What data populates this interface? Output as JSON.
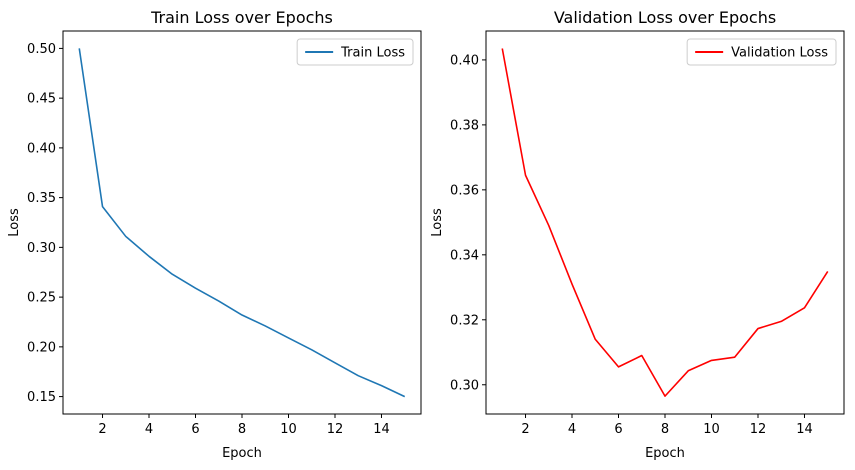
{
  "chart_data": [
    {
      "type": "line",
      "title": "Train Loss over Epochs",
      "xlabel": "Epoch",
      "ylabel": "Loss",
      "xlim": [
        0.3,
        15.7
      ],
      "ylim": [
        0.1325,
        0.5175
      ],
      "xticks": [
        2,
        4,
        6,
        8,
        10,
        12,
        14
      ],
      "yticks": [
        0.15,
        0.2,
        0.25,
        0.3,
        0.35,
        0.4,
        0.45,
        0.5
      ],
      "ytick_labels": [
        "0.15",
        "0.20",
        "0.25",
        "0.30",
        "0.35",
        "0.40",
        "0.45",
        "0.50"
      ],
      "legend_position": "top-right",
      "series": [
        {
          "name": "Train Loss",
          "color": "#1f77b4",
          "x": [
            1,
            2,
            3,
            4,
            5,
            6,
            7,
            8,
            9,
            10,
            11,
            12,
            13,
            14,
            15
          ],
          "values": [
            0.5,
            0.341,
            0.311,
            0.291,
            0.273,
            0.259,
            0.246,
            0.232,
            0.221,
            0.209,
            0.197,
            0.184,
            0.171,
            0.161,
            0.15
          ]
        }
      ]
    },
    {
      "type": "line",
      "title": "Validation Loss over Epochs",
      "xlabel": "Epoch",
      "ylabel": "Loss",
      "xlim": [
        0.3,
        15.7
      ],
      "ylim": [
        0.291,
        0.4089
      ],
      "xticks": [
        2,
        4,
        6,
        8,
        10,
        12,
        14
      ],
      "yticks": [
        0.3,
        0.32,
        0.34,
        0.36,
        0.38,
        0.4
      ],
      "ytick_labels": [
        "0.30",
        "0.32",
        "0.34",
        "0.36",
        "0.38",
        "0.40"
      ],
      "legend_position": "top-right",
      "series": [
        {
          "name": "Validation Loss",
          "color": "#ff0000",
          "x": [
            1,
            2,
            3,
            4,
            5,
            6,
            7,
            8,
            9,
            10,
            11,
            12,
            13,
            14,
            15
          ],
          "values": [
            0.4035,
            0.3645,
            0.349,
            0.331,
            0.314,
            0.3055,
            0.309,
            0.2965,
            0.3043,
            0.3075,
            0.3085,
            0.3173,
            0.3195,
            0.3237,
            0.3349
          ]
        }
      ]
    }
  ]
}
